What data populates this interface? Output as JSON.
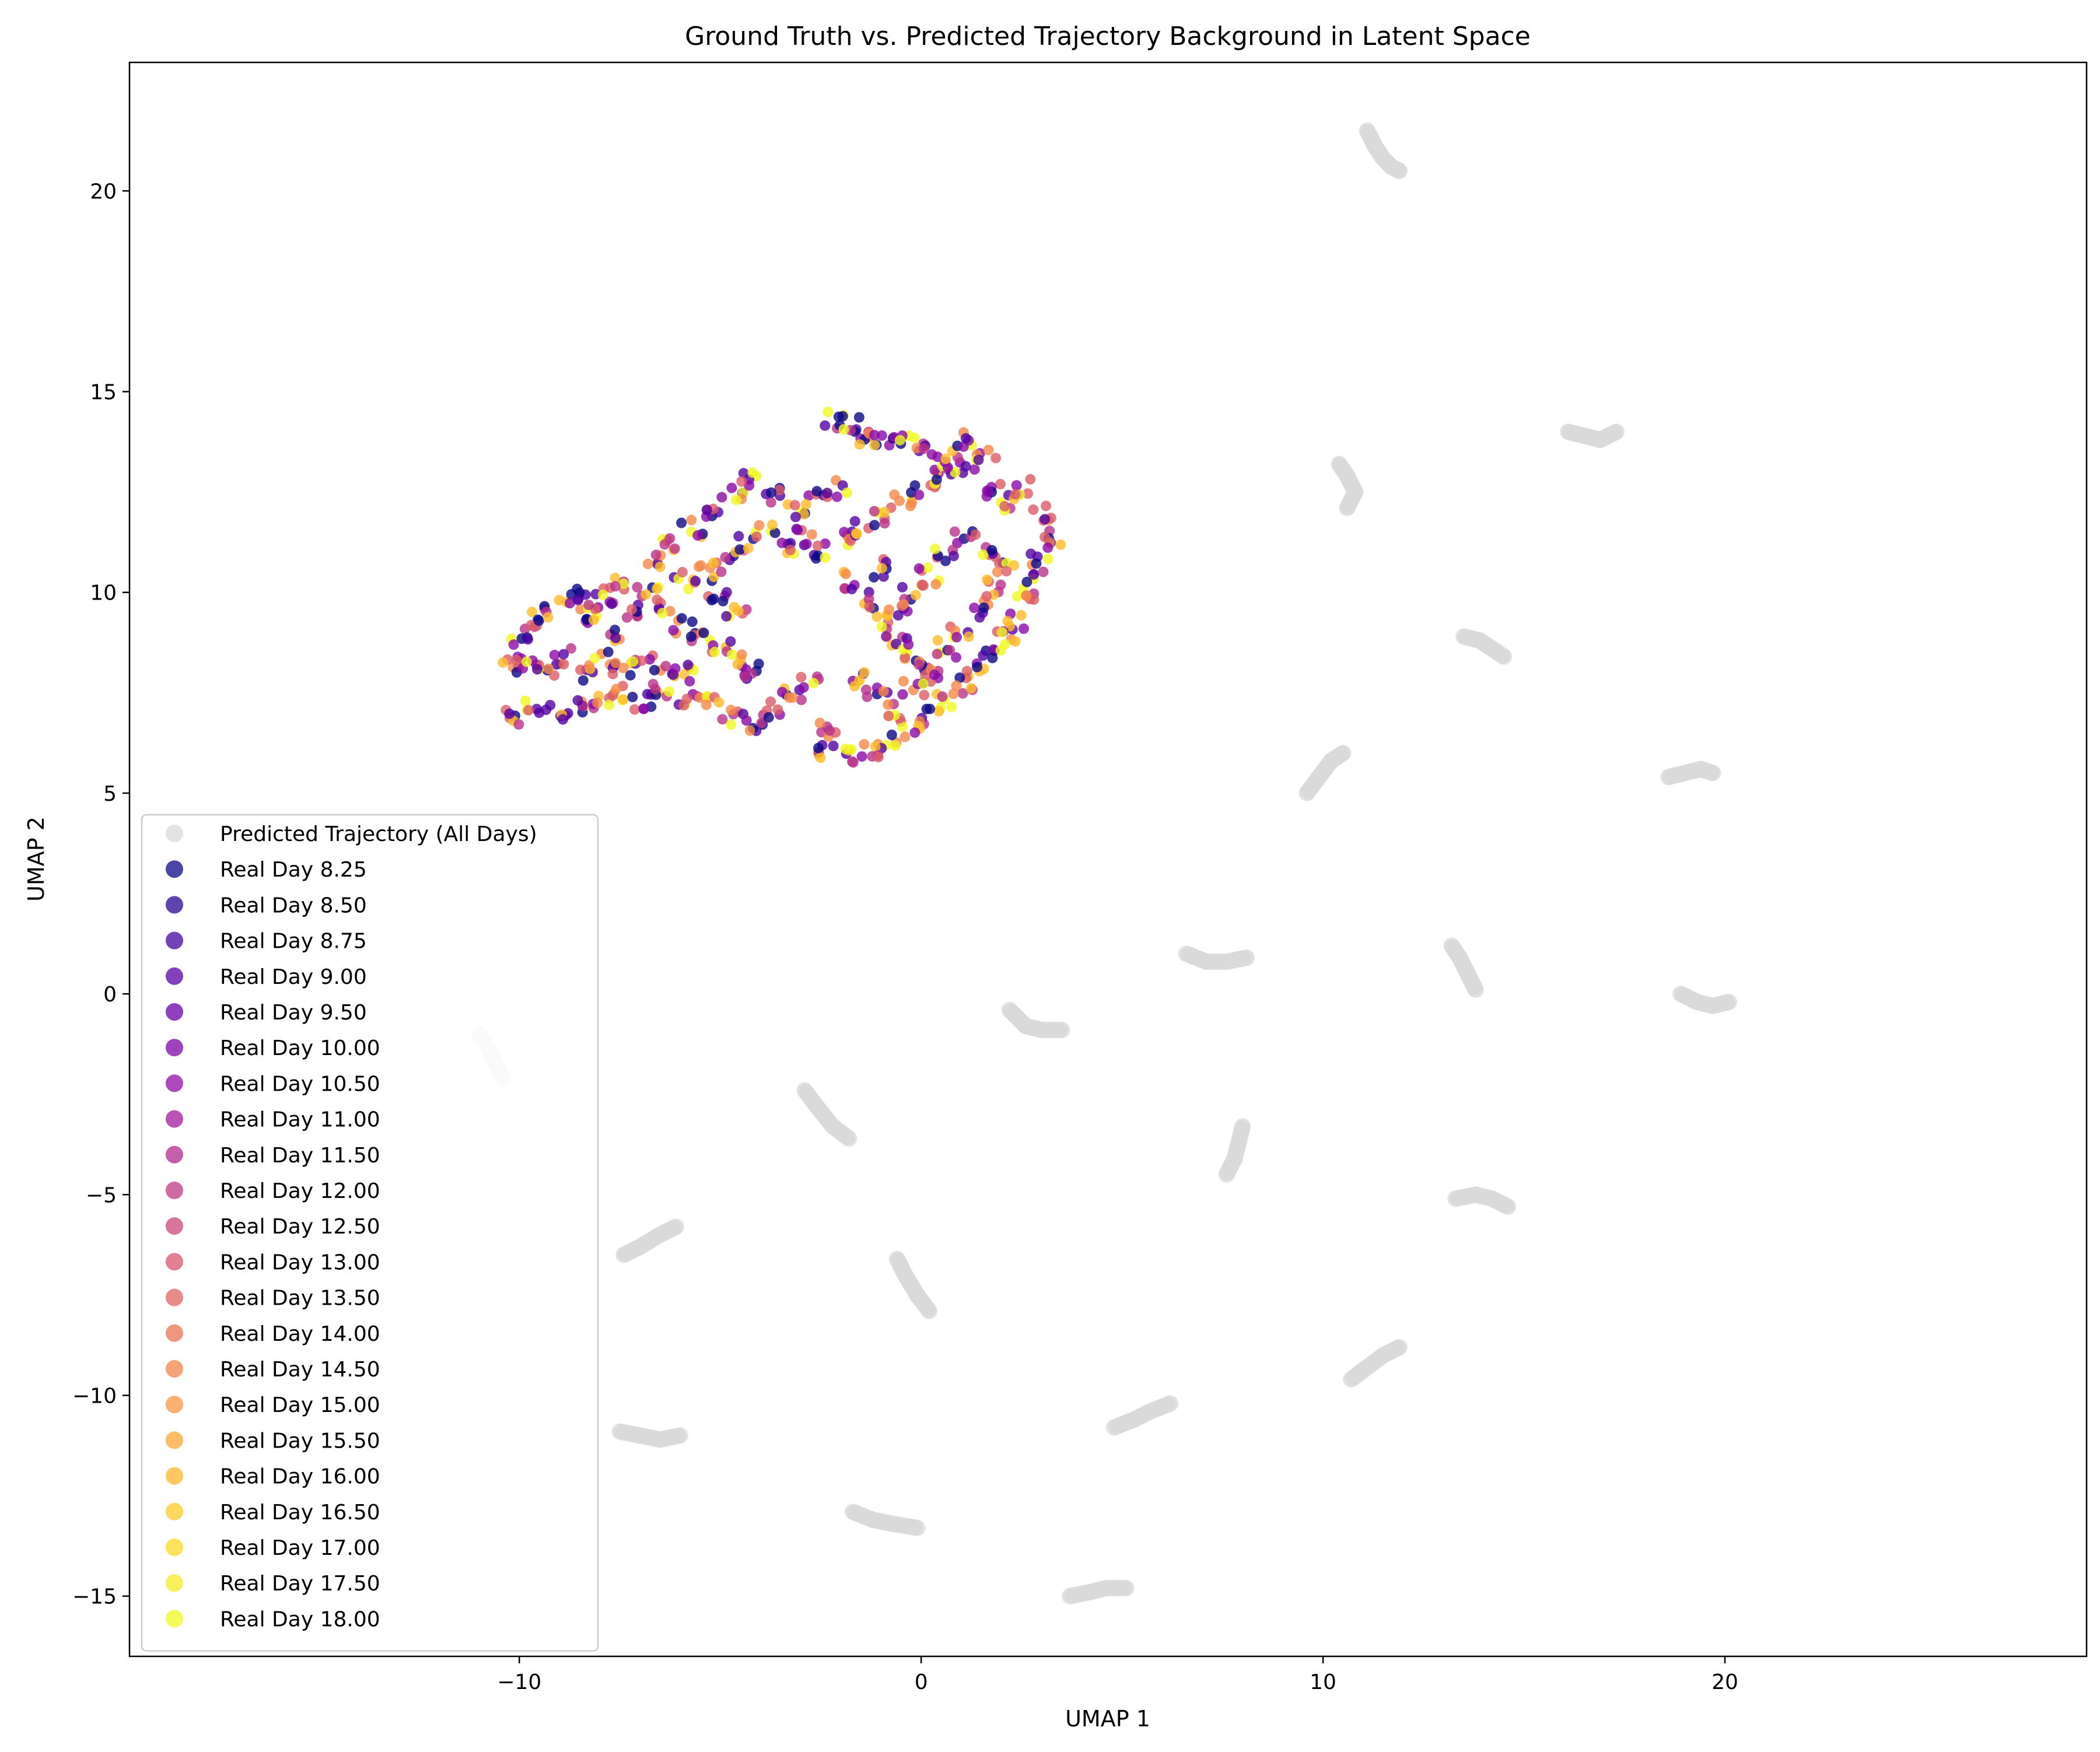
{
  "chart_data": {
    "type": "scatter",
    "title": "Ground Truth vs. Predicted Trajectory Background in Latent Space",
    "xlabel": "UMAP 1",
    "ylabel": "UMAP 2",
    "xlim": [
      -19.7,
      29.0
    ],
    "ylim": [
      -16.5,
      23.2
    ],
    "xticks": [
      -10,
      0,
      10,
      20
    ],
    "xtick_labels": [
      "−10",
      "0",
      "10",
      "20"
    ],
    "yticks": [
      -15,
      -10,
      -5,
      0,
      5,
      10,
      15,
      20
    ],
    "ytick_labels": [
      "−15",
      "−10",
      "−5",
      "0",
      "5",
      "10",
      "15",
      "20"
    ],
    "grid": false,
    "legend_position": "lower-left",
    "background_series": {
      "name": "Predicted Trajectory (All Days)",
      "color": "#d9d9d9",
      "clusters": [
        {
          "x": [
            11.1,
            11.3,
            11.5,
            11.7,
            11.9
          ],
          "y": [
            21.5,
            21.1,
            20.8,
            20.6,
            20.5
          ]
        },
        {
          "x": [
            16.1,
            16.5,
            16.9,
            17.3
          ],
          "y": [
            14.0,
            13.9,
            13.8,
            14.0
          ]
        },
        {
          "x": [
            10.4,
            10.6,
            10.8,
            10.6
          ],
          "y": [
            13.2,
            12.9,
            12.5,
            12.1
          ]
        },
        {
          "x": [
            13.5,
            13.9,
            14.2,
            14.5
          ],
          "y": [
            8.9,
            8.8,
            8.6,
            8.4
          ]
        },
        {
          "x": [
            9.6,
            9.9,
            10.2,
            10.5
          ],
          "y": [
            5.0,
            5.4,
            5.8,
            6.0
          ]
        },
        {
          "x": [
            18.6,
            19.0,
            19.4,
            19.7
          ],
          "y": [
            5.4,
            5.5,
            5.6,
            5.5
          ]
        },
        {
          "x": [
            6.6,
            7.1,
            7.6,
            8.1
          ],
          "y": [
            1.0,
            0.8,
            0.8,
            0.9
          ]
        },
        {
          "x": [
            13.2,
            13.4,
            13.6,
            13.8
          ],
          "y": [
            1.2,
            0.9,
            0.5,
            0.1
          ]
        },
        {
          "x": [
            18.9,
            19.3,
            19.7,
            20.1
          ],
          "y": [
            0.0,
            -0.2,
            -0.3,
            -0.2
          ]
        },
        {
          "x": [
            2.2,
            2.6,
            3.0,
            3.5
          ],
          "y": [
            -0.4,
            -0.8,
            -0.9,
            -0.9
          ]
        },
        {
          "x": [
            -11.0,
            -10.8,
            -10.6,
            -10.4
          ],
          "y": [
            -1.0,
            -1.3,
            -1.7,
            -2.1
          ]
        },
        {
          "x": [
            -2.9,
            -2.6,
            -2.2,
            -1.8
          ],
          "y": [
            -2.4,
            -2.8,
            -3.3,
            -3.6
          ]
        },
        {
          "x": [
            8.0,
            7.9,
            7.8,
            7.6
          ],
          "y": [
            -3.3,
            -3.7,
            -4.1,
            -4.5
          ]
        },
        {
          "x": [
            13.3,
            13.8,
            14.2,
            14.6
          ],
          "y": [
            -5.1,
            -5.0,
            -5.1,
            -5.3
          ]
        },
        {
          "x": [
            -7.4,
            -7.0,
            -6.5,
            -6.1
          ],
          "y": [
            -6.5,
            -6.3,
            -6.0,
            -5.8
          ]
        },
        {
          "x": [
            -0.6,
            -0.4,
            -0.1,
            0.2
          ],
          "y": [
            -6.6,
            -7.0,
            -7.5,
            -7.9
          ]
        },
        {
          "x": [
            10.7,
            11.1,
            11.5,
            11.9
          ],
          "y": [
            -9.6,
            -9.3,
            -9.0,
            -8.8
          ]
        },
        {
          "x": [
            4.8,
            5.3,
            5.7,
            6.2
          ],
          "y": [
            -10.8,
            -10.6,
            -10.4,
            -10.2
          ]
        },
        {
          "x": [
            -7.5,
            -7.0,
            -6.5,
            -6.0
          ],
          "y": [
            -10.9,
            -11.0,
            -11.1,
            -11.0
          ]
        },
        {
          "x": [
            -1.7,
            -1.2,
            -0.7,
            -0.1
          ],
          "y": [
            -12.9,
            -13.1,
            -13.2,
            -13.3
          ]
        },
        {
          "x": [
            3.7,
            4.2,
            4.6,
            5.1
          ],
          "y": [
            -15.0,
            -14.9,
            -14.8,
            -14.8
          ]
        }
      ]
    },
    "real_region": {
      "description_points": [
        [
          -10.1,
          6.9
        ],
        [
          -9.6,
          7.1
        ],
        [
          -9.0,
          7.0
        ],
        [
          -8.4,
          7.2
        ],
        [
          -7.9,
          7.3
        ],
        [
          -7.4,
          7.5
        ],
        [
          -6.9,
          7.3
        ],
        [
          -6.4,
          7.6
        ],
        [
          -5.8,
          7.4
        ],
        [
          -5.3,
          7.2
        ],
        [
          -4.7,
          6.9
        ],
        [
          -4.2,
          6.7
        ],
        [
          -3.7,
          7.1
        ],
        [
          -3.2,
          7.5
        ],
        [
          -2.8,
          7.7
        ],
        [
          -10.2,
          8.3
        ],
        [
          -10.0,
          8.9
        ],
        [
          -9.6,
          9.3
        ],
        [
          -9.1,
          9.6
        ],
        [
          -8.6,
          9.9
        ],
        [
          -8.1,
          9.4
        ],
        [
          -7.6,
          8.9
        ],
        [
          -7.2,
          9.6
        ],
        [
          -6.8,
          10.0
        ],
        [
          -6.3,
          9.6
        ],
        [
          -5.9,
          9.2
        ],
        [
          -5.5,
          8.9
        ],
        [
          -5.0,
          8.6
        ],
        [
          -4.6,
          8.3
        ],
        [
          -4.2,
          8.0
        ],
        [
          -8.9,
          8.4
        ],
        [
          -8.4,
          8.0
        ],
        [
          -7.9,
          8.3
        ],
        [
          -7.4,
          8.1
        ],
        [
          -6.9,
          8.4
        ],
        [
          -6.4,
          8.1
        ],
        [
          -5.9,
          8.0
        ],
        [
          -6.6,
          10.8
        ],
        [
          -6.2,
          11.2
        ],
        [
          -5.7,
          11.6
        ],
        [
          -5.2,
          12.0
        ],
        [
          -4.7,
          12.5
        ],
        [
          -4.2,
          12.8
        ],
        [
          -3.6,
          12.4
        ],
        [
          -3.1,
          12.0
        ],
        [
          -2.6,
          12.3
        ],
        [
          -2.1,
          12.6
        ],
        [
          -5.9,
          10.3
        ],
        [
          -5.4,
          10.5
        ],
        [
          -4.9,
          10.7
        ],
        [
          -4.4,
          11.2
        ],
        [
          -3.9,
          11.5
        ],
        [
          -3.4,
          11.1
        ],
        [
          -2.9,
          11.4
        ],
        [
          -2.4,
          11.0
        ],
        [
          -1.9,
          11.3
        ],
        [
          -1.4,
          11.6
        ],
        [
          -0.9,
          11.9
        ],
        [
          -0.4,
          12.3
        ],
        [
          0.1,
          12.6
        ],
        [
          0.6,
          12.9
        ],
        [
          1.1,
          13.2
        ],
        [
          1.6,
          13.5
        ],
        [
          -2.2,
          14.3
        ],
        [
          -1.8,
          14.2
        ],
        [
          -1.4,
          13.9
        ],
        [
          -0.9,
          13.7
        ],
        [
          -0.4,
          13.9
        ],
        [
          0.1,
          13.6
        ],
        [
          0.6,
          13.3
        ],
        [
          1.1,
          13.8
        ],
        [
          1.7,
          12.5
        ],
        [
          2.2,
          12.2
        ],
        [
          2.6,
          12.6
        ],
        [
          3.0,
          12.0
        ],
        [
          3.2,
          11.4
        ],
        [
          3.0,
          10.9
        ],
        [
          2.8,
          10.3
        ],
        [
          2.6,
          9.8
        ],
        [
          2.4,
          9.3
        ],
        [
          2.1,
          8.9
        ],
        [
          1.8,
          8.5
        ],
        [
          1.4,
          8.1
        ],
        [
          1.0,
          7.7
        ],
        [
          0.6,
          7.3
        ],
        [
          0.2,
          6.9
        ],
        [
          -0.3,
          6.6
        ],
        [
          -0.8,
          6.3
        ],
        [
          -1.3,
          6.1
        ],
        [
          -1.8,
          5.9
        ],
        [
          -2.3,
          6.1
        ],
        [
          -2.4,
          6.6
        ],
        [
          -1.7,
          10.3
        ],
        [
          -1.3,
          9.8
        ],
        [
          -1.0,
          9.3
        ],
        [
          -0.6,
          8.9
        ],
        [
          -0.2,
          8.5
        ],
        [
          0.2,
          8.1
        ],
        [
          0.6,
          8.6
        ],
        [
          1.0,
          9.1
        ],
        [
          1.4,
          9.6
        ],
        [
          1.8,
          10.1
        ],
        [
          2.1,
          10.6
        ],
        [
          1.6,
          11.0
        ],
        [
          1.1,
          11.3
        ],
        [
          0.6,
          10.9
        ],
        [
          0.2,
          10.4
        ],
        [
          -0.2,
          10.0
        ],
        [
          -0.6,
          9.6
        ],
        [
          -1.0,
          10.6
        ],
        [
          -1.5,
          7.8
        ],
        [
          -1.1,
          7.4
        ],
        [
          -0.7,
          7.0
        ],
        [
          -0.2,
          7.6
        ],
        [
          0.3,
          7.9
        ],
        [
          -7.5,
          10.2
        ],
        [
          -7.9,
          9.9
        ],
        [
          -8.3,
          9.6
        ],
        [
          -9.3,
          8.0
        ],
        [
          -9.8,
          8.2
        ],
        [
          -5.1,
          9.8
        ],
        [
          -4.6,
          9.5
        ]
      ],
      "colors": [
        "#0d0887",
        "#5302a3",
        "#8b0aa5",
        "#b83289",
        "#db5c68",
        "#f48849",
        "#febd2a",
        "#f0f921"
      ]
    },
    "legend_entries": [
      {
        "label": "Predicted Trajectory (All Days)",
        "color": "#d9d9d9"
      },
      {
        "label": "Real Day 8.25",
        "color": "#0d0887"
      },
      {
        "label": "Real Day 8.50",
        "color": "#2a0593"
      },
      {
        "label": "Real Day 8.75",
        "color": "#41049d"
      },
      {
        "label": "Real Day 9.00",
        "color": "#5601a4"
      },
      {
        "label": "Real Day 9.50",
        "color": "#6a00a8"
      },
      {
        "label": "Real Day 10.00",
        "color": "#7e03a8"
      },
      {
        "label": "Real Day 10.50",
        "color": "#900da4"
      },
      {
        "label": "Real Day 11.00",
        "color": "#a11b9b"
      },
      {
        "label": "Real Day 11.50",
        "color": "#b12a90"
      },
      {
        "label": "Real Day 12.00",
        "color": "#bf3984"
      },
      {
        "label": "Real Day 12.50",
        "color": "#cc4778"
      },
      {
        "label": "Real Day 13.00",
        "color": "#d6556d"
      },
      {
        "label": "Real Day 13.50",
        "color": "#e16462"
      },
      {
        "label": "Real Day 14.00",
        "color": "#ea7457"
      },
      {
        "label": "Real Day 14.50",
        "color": "#f2844b"
      },
      {
        "label": "Real Day 15.00",
        "color": "#f89540"
      },
      {
        "label": "Real Day 15.50",
        "color": "#fca636"
      },
      {
        "label": "Real Day 16.00",
        "color": "#feb72d"
      },
      {
        "label": "Real Day 16.50",
        "color": "#fdc926"
      },
      {
        "label": "Real Day 17.00",
        "color": "#fadb24"
      },
      {
        "label": "Real Day 17.50",
        "color": "#f5ec25"
      },
      {
        "label": "Real Day 18.00",
        "color": "#f0f921"
      }
    ]
  }
}
